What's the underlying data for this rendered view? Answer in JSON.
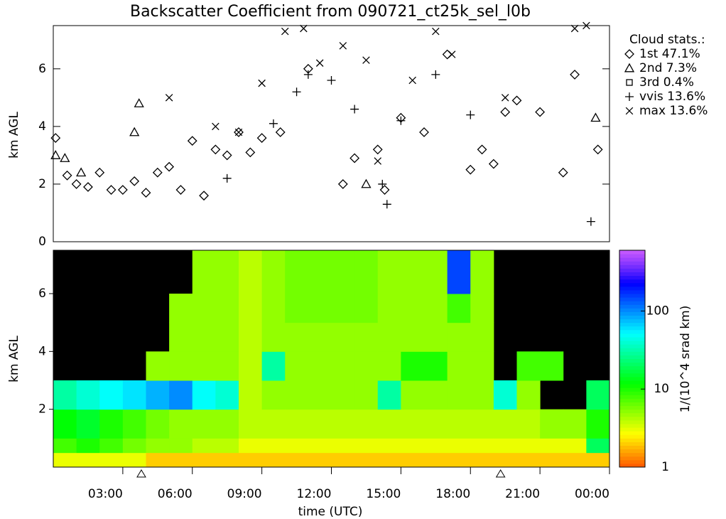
{
  "chart_data": [
    {
      "type": "scatter",
      "title": "Backscatter Coefficient from 090721_ct25k_sel_l0b",
      "y_label": "km AGL",
      "xlim": [
        0,
        24
      ],
      "ylim": [
        0,
        7.5
      ],
      "yticks": [
        0,
        2,
        4,
        6
      ],
      "legend_title": "Cloud stats.:",
      "series": [
        {
          "name": "1st  47.1%",
          "marker": "diamond",
          "color": "#000000",
          "x": [
            0.1,
            0.6,
            1.0,
            1.5,
            2.0,
            2.5,
            3.0,
            3.5,
            4.0,
            4.5,
            5.0,
            5.5,
            6.0,
            6.5,
            7.0,
            7.5,
            8.0,
            8.5,
            9.0,
            9.8,
            11.0,
            12.5,
            13.0,
            14.0,
            14.3,
            15.0,
            16.0,
            17.0,
            18.0,
            18.5,
            19.0,
            19.5,
            20.0,
            21.0,
            22.0,
            22.5,
            23.5
          ],
          "values": [
            3.6,
            2.3,
            2.0,
            1.9,
            2.4,
            1.8,
            1.8,
            2.1,
            1.7,
            2.4,
            2.6,
            1.8,
            3.5,
            1.6,
            3.2,
            3.0,
            3.8,
            3.1,
            3.6,
            3.8,
            6.0,
            2.0,
            2.9,
            3.2,
            1.8,
            4.3,
            3.8,
            6.5,
            2.5,
            3.2,
            2.7,
            4.5,
            4.9,
            4.5,
            2.4,
            5.8,
            3.2
          ]
        },
        {
          "name": "2nd   7.3%",
          "marker": "triangle",
          "color": "#000000",
          "x": [
            0.1,
            0.5,
            1.2,
            3.5,
            3.7,
            13.5,
            23.4
          ],
          "values": [
            3.0,
            2.9,
            2.4,
            3.8,
            4.8,
            2.0,
            4.3
          ]
        },
        {
          "name": "3rd   0.4%",
          "marker": "square",
          "color": "#000000",
          "x": [],
          "values": []
        },
        {
          "name": "vvis 13.6%",
          "marker": "plus",
          "color": "#000000",
          "x": [
            7.5,
            9.5,
            10.5,
            11.0,
            12.0,
            13.0,
            14.2,
            14.4,
            15.0,
            16.5,
            18.0,
            23.2
          ],
          "values": [
            2.2,
            4.1,
            5.2,
            5.8,
            5.6,
            4.6,
            2.0,
            1.3,
            4.2,
            5.8,
            4.4,
            0.7
          ]
        },
        {
          "name": "max  13.6%",
          "marker": "cross",
          "color": "#000000",
          "x": [
            5.0,
            7.0,
            8.0,
            9.0,
            10.0,
            10.8,
            11.5,
            12.5,
            13.5,
            14.0,
            15.5,
            16.5,
            17.2,
            19.5,
            22.5,
            23.0
          ],
          "values": [
            5.0,
            4.0,
            3.8,
            5.5,
            7.3,
            7.4,
            6.2,
            6.8,
            6.3,
            2.8,
            5.6,
            7.3,
            6.5,
            5.0,
            7.4,
            7.5
          ]
        }
      ]
    },
    {
      "type": "heatmap",
      "x_label": "time (UTC)",
      "y_label": "km AGL",
      "xlim": [
        0,
        24
      ],
      "ylim": [
        0,
        7.5
      ],
      "yticks": [
        2,
        4,
        6
      ],
      "xticks": [
        {
          "value": 3,
          "label": "03:00"
        },
        {
          "value": 6,
          "label": "06:00"
        },
        {
          "value": 9,
          "label": "09:00"
        },
        {
          "value": 12,
          "label": "12:00"
        },
        {
          "value": 15,
          "label": "15:00"
        },
        {
          "value": 18,
          "label": "18:00"
        },
        {
          "value": 21,
          "label": "21:00"
        },
        {
          "value": 24,
          "label": "00:00"
        }
      ],
      "x_edges": [
        0,
        1,
        2,
        3,
        4,
        5,
        6,
        7,
        8,
        9,
        10,
        11,
        12,
        13,
        14,
        15,
        16,
        17,
        18,
        19,
        20,
        21,
        22,
        23,
        24
      ],
      "y_edges": [
        0,
        0.5,
        1,
        2,
        3,
        4,
        5,
        6,
        7.5
      ],
      "event_markers": [
        3.8,
        19.3
      ],
      "color_scale": "log",
      "clim": [
        1,
        600
      ],
      "colorbar_ticks": [
        1,
        10,
        100
      ],
      "colorbar_label": "1/(10^4 srad km)",
      "values": [
        [
          3,
          8,
          12,
          30,
          null,
          null,
          null,
          null
        ],
        [
          3,
          10,
          15,
          40,
          null,
          null,
          null,
          null
        ],
        [
          3,
          8,
          10,
          50,
          null,
          null,
          null,
          null
        ],
        [
          3,
          6,
          8,
          60,
          null,
          null,
          null,
          null
        ],
        [
          2,
          5,
          6,
          80,
          5,
          null,
          null,
          null
        ],
        [
          2,
          5,
          5,
          100,
          5,
          5,
          5,
          null
        ],
        [
          2,
          4,
          5,
          50,
          5,
          5,
          5,
          5
        ],
        [
          2,
          4,
          5,
          40,
          5,
          5,
          5,
          5
        ],
        [
          2,
          3,
          4,
          4,
          4,
          4,
          4,
          4
        ],
        [
          2,
          3,
          4,
          5,
          30,
          5,
          5,
          5
        ],
        [
          2,
          3,
          4,
          5,
          5,
          5,
          6,
          6
        ],
        [
          2,
          3,
          4,
          5,
          5,
          5,
          6,
          6
        ],
        [
          2,
          3,
          4,
          5,
          5,
          5,
          6,
          6
        ],
        [
          2,
          3,
          4,
          5,
          5,
          5,
          6,
          6
        ],
        [
          2,
          3,
          4,
          30,
          5,
          5,
          5,
          5
        ],
        [
          2,
          3,
          4,
          5,
          10,
          5,
          5,
          5
        ],
        [
          2,
          3,
          4,
          5,
          10,
          5,
          5,
          5
        ],
        [
          2,
          3,
          4,
          5,
          5,
          5,
          8,
          150
        ],
        [
          2,
          3,
          4,
          5,
          5,
          5,
          5,
          5
        ],
        [
          2,
          3,
          4,
          40,
          null,
          null,
          null,
          null
        ],
        [
          2,
          3,
          4,
          5,
          8,
          null,
          null,
          null
        ],
        [
          2,
          3,
          5,
          null,
          8,
          null,
          null,
          null
        ],
        [
          2,
          3,
          5,
          null,
          null,
          null,
          null,
          null
        ],
        [
          2,
          20,
          10,
          20,
          null,
          null,
          null,
          null
        ]
      ]
    }
  ]
}
